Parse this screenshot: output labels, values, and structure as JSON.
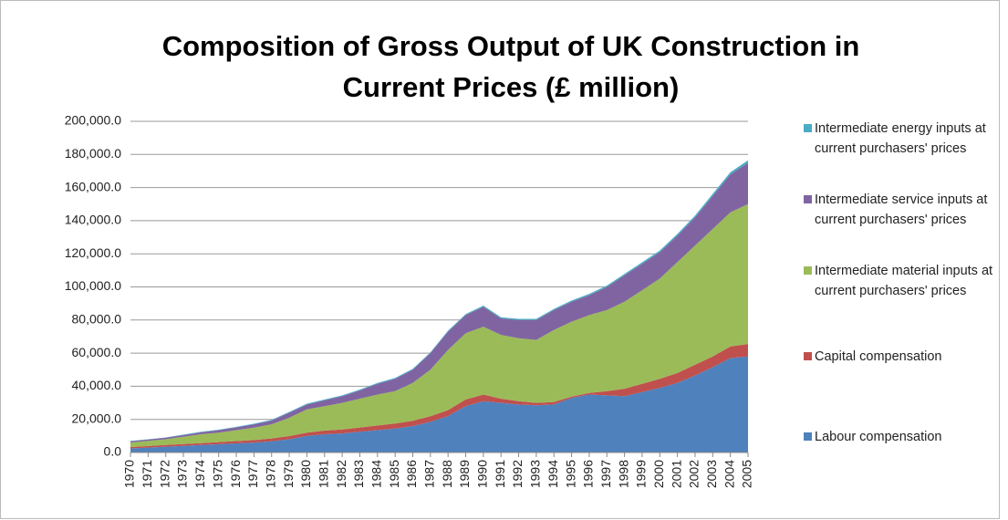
{
  "chart_data": {
    "type": "stacked_area",
    "title": "Composition of Gross Output of UK Construction in Current Prices (£ million)",
    "categories": [
      "1970",
      "1971",
      "1972",
      "1973",
      "1974",
      "1975",
      "1976",
      "1977",
      "1978",
      "1979",
      "1980",
      "1981",
      "1982",
      "1983",
      "1984",
      "1985",
      "1986",
      "1987",
      "1988",
      "1989",
      "1990",
      "1991",
      "1992",
      "1993",
      "1994",
      "1995",
      "1996",
      "1997",
      "1998",
      "1999",
      "2000",
      "2001",
      "2002",
      "2003",
      "2004",
      "2005"
    ],
    "series": [
      {
        "name": "Labour compensation",
        "color": "#4f81bd",
        "values": [
          2500,
          3000,
          3500,
          4000,
          4500,
          5000,
          5500,
          6000,
          6800,
          8000,
          10000,
          11000,
          11500,
          12500,
          13500,
          14500,
          16000,
          18500,
          22000,
          28000,
          31000,
          30000,
          29000,
          28500,
          29000,
          33000,
          35000,
          34500,
          34000,
          36500,
          39000,
          42000,
          46500,
          51500,
          57000,
          58000
        ]
      },
      {
        "name": "Capital compensation",
        "color": "#c0504d",
        "values": [
          800,
          900,
          1000,
          1100,
          1200,
          1300,
          1400,
          1500,
          1700,
          1900,
          2000,
          2200,
          2400,
          2600,
          2800,
          3000,
          3200,
          3400,
          3600,
          4000,
          4000,
          2500,
          2000,
          1500,
          1500,
          800,
          1000,
          2500,
          4500,
          5000,
          5500,
          6000,
          6500,
          6500,
          7000,
          7500
        ]
      },
      {
        "name": "Intermediate material inputs at current purchasers' prices",
        "color": "#9bbb59",
        "values": [
          2700,
          3100,
          3500,
          4400,
          5300,
          5700,
          6600,
          7500,
          8500,
          11100,
          14000,
          14800,
          16100,
          17400,
          18700,
          19500,
          22800,
          28100,
          36400,
          40000,
          41000,
          38500,
          38000,
          38000,
          43500,
          45200,
          47000,
          49000,
          52500,
          56500,
          60500,
          67000,
          72000,
          77000,
          81000,
          84500
        ]
      },
      {
        "name": "Intermediate service inputs at current purchasers' prices",
        "color": "#8064a2",
        "values": [
          800,
          800,
          900,
          1000,
          1200,
          1500,
          1700,
          2000,
          2300,
          3000,
          3000,
          3500,
          4000,
          5000,
          6500,
          7500,
          8000,
          10000,
          11000,
          11000,
          12000,
          10000,
          11000,
          12000,
          12000,
          12000,
          12000,
          14000,
          16000,
          16000,
          16000,
          16000,
          17000,
          20000,
          23000,
          25000
        ]
      },
      {
        "name": "Intermediate energy inputs at current purchasers' prices",
        "color": "#4bacc6",
        "values": [
          200,
          200,
          200,
          300,
          300,
          300,
          300,
          400,
          400,
          500,
          500,
          500,
          500,
          500,
          500,
          500,
          500,
          500,
          600,
          600,
          700,
          700,
          700,
          700,
          700,
          800,
          800,
          800,
          900,
          900,
          1000,
          1000,
          1100,
          1200,
          1300,
          1400
        ]
      }
    ],
    "ylim": [
      0,
      200000
    ],
    "yticks": [
      {
        "value": 0,
        "label": "0.0"
      },
      {
        "value": 20000,
        "label": "20,000.0"
      },
      {
        "value": 40000,
        "label": "40,000.0"
      },
      {
        "value": 60000,
        "label": "60,000.0"
      },
      {
        "value": 80000,
        "label": "80,000.0"
      },
      {
        "value": 100000,
        "label": "100,000.0"
      },
      {
        "value": 120000,
        "label": "120,000.0"
      },
      {
        "value": 140000,
        "label": "140,000.0"
      },
      {
        "value": 160000,
        "label": "160,000.0"
      },
      {
        "value": 180000,
        "label": "180,000.0"
      },
      {
        "value": 200000,
        "label": "200,000.0"
      }
    ],
    "grid": true,
    "legend": "right"
  }
}
